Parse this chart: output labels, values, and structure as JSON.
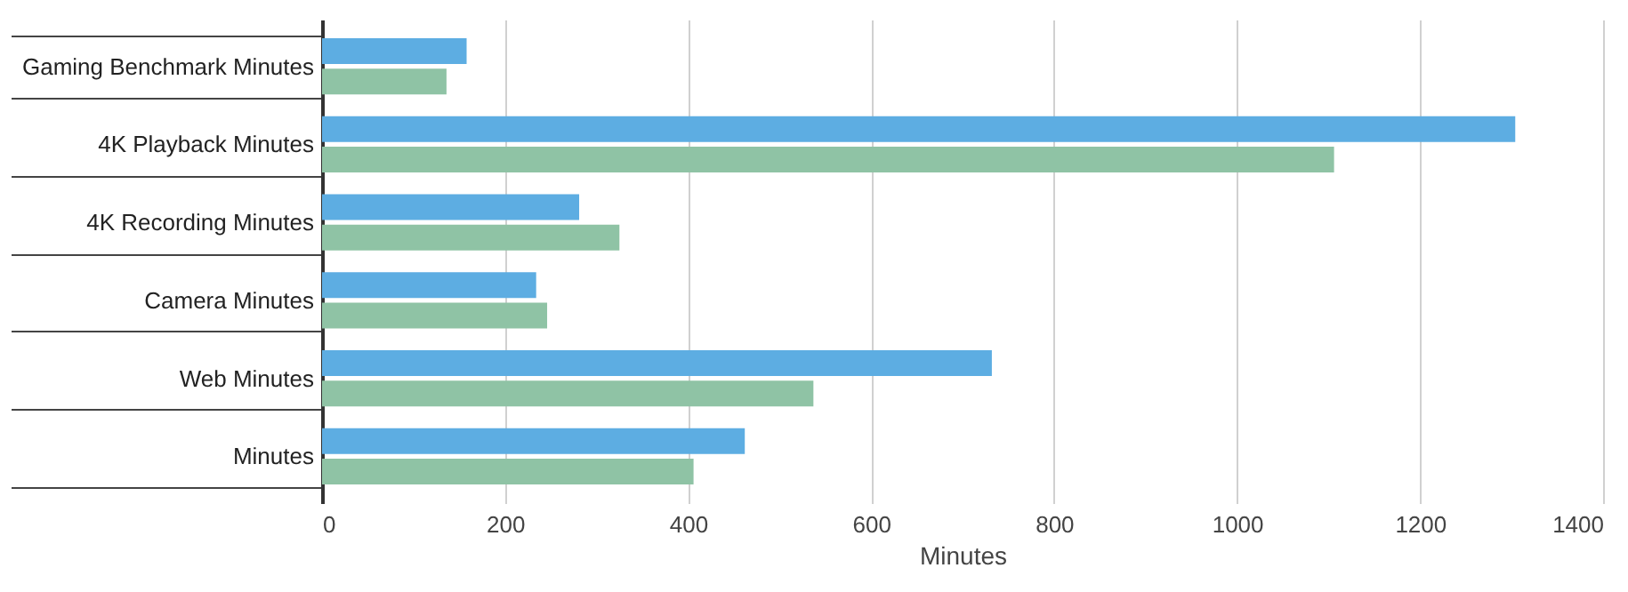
{
  "chart_data": {
    "type": "bar",
    "orientation": "horizontal",
    "xlabel": "Minutes",
    "categories": [
      "Gaming Benchmark Minutes",
      "4K Playback Minutes",
      "4K Recording Minutes",
      "Camera Minutes",
      "Web Minutes",
      "Minutes"
    ],
    "series": [
      {
        "color": "#5dade2",
        "values": [
          158,
          1304,
          281,
          234,
          732,
          462
        ]
      },
      {
        "color": "#8fc3a5",
        "values": [
          136,
          1106,
          325,
          246,
          537,
          406
        ]
      }
    ],
    "xlim": [
      0,
      1400
    ],
    "xticks": [
      0,
      200,
      400,
      600,
      800,
      1000,
      1200,
      1400
    ],
    "grid": "x",
    "legend": false
  }
}
